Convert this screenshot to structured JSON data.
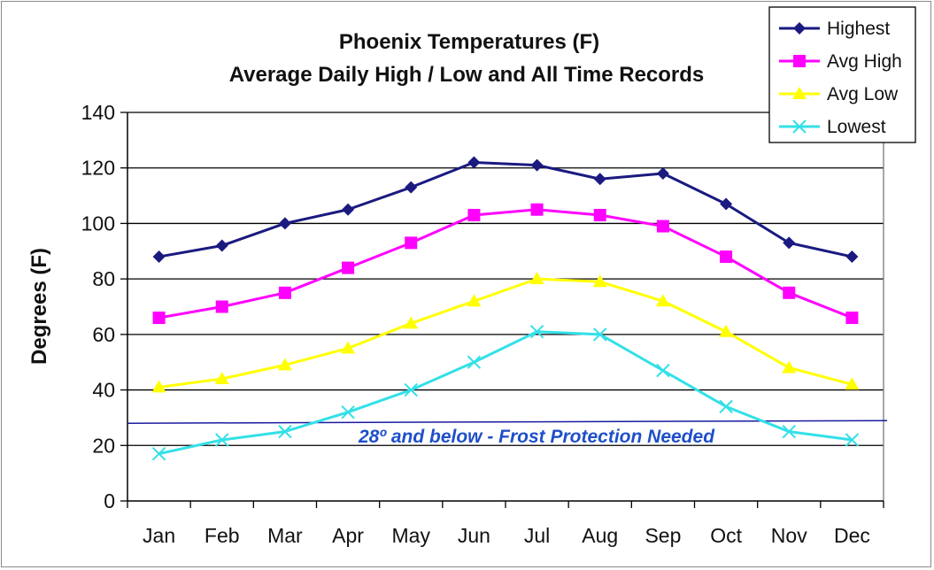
{
  "chart_data": {
    "type": "line",
    "title": "Phoenix Temperatures (F)",
    "subtitle": "Average Daily High / Low and All Time Records",
    "xlabel": "",
    "ylabel": "Degrees (F)",
    "ylim": [
      0,
      140
    ],
    "yticks": [
      0,
      20,
      40,
      60,
      80,
      100,
      120,
      140
    ],
    "grid": true,
    "legend_position": "top-right",
    "categories": [
      "Jan",
      "Feb",
      "Mar",
      "Apr",
      "May",
      "Jun",
      "Jul",
      "Aug",
      "Sep",
      "Oct",
      "Nov",
      "Dec"
    ],
    "series": [
      {
        "name": "Highest",
        "color": "#1a1a80",
        "marker": "diamond",
        "values": [
          88,
          92,
          100,
          105,
          113,
          122,
          121,
          116,
          118,
          107,
          93,
          88
        ]
      },
      {
        "name": "Avg High",
        "color": "#ff00ff",
        "marker": "square",
        "values": [
          66,
          70,
          75,
          84,
          93,
          103,
          105,
          103,
          99,
          88,
          75,
          66
        ]
      },
      {
        "name": "Avg Low",
        "color": "#ffff00",
        "marker": "triangle",
        "values": [
          41,
          44,
          49,
          55,
          64,
          72,
          80,
          79,
          72,
          61,
          48,
          42
        ]
      },
      {
        "name": "Lowest",
        "color": "#33e0e8",
        "marker": "x",
        "values": [
          17,
          22,
          25,
          32,
          40,
          50,
          61,
          60,
          47,
          34,
          25,
          22
        ]
      }
    ],
    "annotation": {
      "text": "28º and below - Frost Protection Needed",
      "value": 28,
      "color": "#1a1aa0",
      "text_color": "#1f4fc8"
    }
  }
}
